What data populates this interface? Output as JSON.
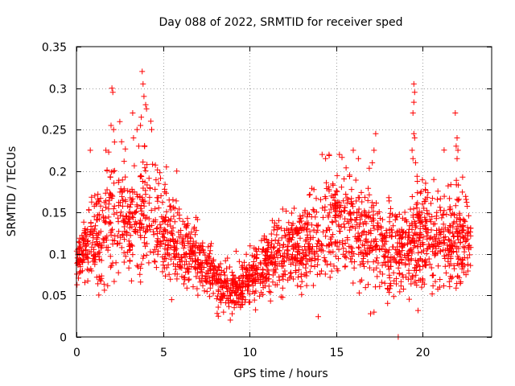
{
  "chart_data": {
    "type": "scatter",
    "title": "Day 088 of 2022, SRMTID for receiver sped",
    "xlabel": "GPS time / hours",
    "ylabel": "SRMTID / TECUs",
    "xlim": [
      0,
      24
    ],
    "ylim": [
      0,
      0.35
    ],
    "xticks": [
      0,
      5,
      10,
      15,
      20
    ],
    "xtick_labels": [
      "0",
      "5",
      "10",
      "15",
      "20"
    ],
    "yticks": [
      0,
      0.05,
      0.1,
      0.15,
      0.2,
      0.25,
      0.3,
      0.35
    ],
    "ytick_labels": [
      "0",
      "0.05",
      "0.1",
      "0.15",
      "0.2",
      "0.25",
      "0.3",
      "0.35"
    ],
    "grid": true,
    "marker": "+",
    "color": "#ff0000",
    "series": [
      {
        "name": "SRMTID",
        "profile_x": [
          0,
          0.5,
          1,
          1.5,
          2,
          2.5,
          3,
          3.5,
          4,
          4.5,
          5,
          5.5,
          6,
          6.5,
          7,
          7.5,
          8,
          8.5,
          9,
          9.5,
          10,
          10.5,
          11,
          11.5,
          12,
          12.5,
          13,
          13.5,
          14,
          14.5,
          15,
          15.5,
          16,
          16.5,
          17,
          17.5,
          18,
          18.5,
          19,
          19.5,
          20,
          20.5,
          21,
          21.5,
          22,
          22.5,
          22.8
        ],
        "profile_y": [
          0.09,
          0.11,
          0.115,
          0.12,
          0.14,
          0.14,
          0.13,
          0.14,
          0.16,
          0.14,
          0.13,
          0.12,
          0.11,
          0.1,
          0.095,
          0.085,
          0.07,
          0.06,
          0.055,
          0.06,
          0.07,
          0.08,
          0.09,
          0.095,
          0.1,
          0.105,
          0.11,
          0.115,
          0.12,
          0.13,
          0.14,
          0.14,
          0.13,
          0.125,
          0.12,
          0.115,
          0.11,
          0.1,
          0.1,
          0.11,
          0.12,
          0.125,
          0.12,
          0.115,
          0.12,
          0.12,
          0.11
        ],
        "profile_spread": [
          0.015,
          0.02,
          0.03,
          0.035,
          0.04,
          0.04,
          0.04,
          0.04,
          0.04,
          0.035,
          0.03,
          0.028,
          0.025,
          0.022,
          0.02,
          0.018,
          0.015,
          0.015,
          0.015,
          0.015,
          0.018,
          0.02,
          0.022,
          0.024,
          0.025,
          0.025,
          0.027,
          0.03,
          0.035,
          0.035,
          0.035,
          0.035,
          0.033,
          0.03,
          0.03,
          0.03,
          0.03,
          0.03,
          0.03,
          0.035,
          0.035,
          0.035,
          0.035,
          0.035,
          0.035,
          0.035,
          0.025
        ],
        "count": 2200,
        "highlights": [
          {
            "x": 2.05,
            "y": 0.3
          },
          {
            "x": 2.1,
            "y": 0.295
          },
          {
            "x": 2.0,
            "y": 0.255
          },
          {
            "x": 2.15,
            "y": 0.25
          },
          {
            "x": 2.2,
            "y": 0.235
          },
          {
            "x": 1.7,
            "y": 0.225
          },
          {
            "x": 0.8,
            "y": 0.225
          },
          {
            "x": 3.25,
            "y": 0.27
          },
          {
            "x": 3.3,
            "y": 0.24
          },
          {
            "x": 3.8,
            "y": 0.32
          },
          {
            "x": 3.85,
            "y": 0.305
          },
          {
            "x": 3.9,
            "y": 0.29
          },
          {
            "x": 4.0,
            "y": 0.28
          },
          {
            "x": 4.05,
            "y": 0.275
          },
          {
            "x": 3.75,
            "y": 0.265
          },
          {
            "x": 3.7,
            "y": 0.255
          },
          {
            "x": 4.3,
            "y": 0.26
          },
          {
            "x": 4.35,
            "y": 0.25
          },
          {
            "x": 3.5,
            "y": 0.25
          },
          {
            "x": 3.6,
            "y": 0.23
          },
          {
            "x": 5.2,
            "y": 0.205
          },
          {
            "x": 5.8,
            "y": 0.2
          },
          {
            "x": 14.2,
            "y": 0.22
          },
          {
            "x": 14.4,
            "y": 0.215
          },
          {
            "x": 14.6,
            "y": 0.22
          },
          {
            "x": 15.2,
            "y": 0.22
          },
          {
            "x": 16.0,
            "y": 0.225
          },
          {
            "x": 16.3,
            "y": 0.215
          },
          {
            "x": 17.3,
            "y": 0.245
          },
          {
            "x": 17.2,
            "y": 0.225
          },
          {
            "x": 17.1,
            "y": 0.21
          },
          {
            "x": 19.5,
            "y": 0.305
          },
          {
            "x": 19.55,
            "y": 0.295
          },
          {
            "x": 19.5,
            "y": 0.283
          },
          {
            "x": 19.45,
            "y": 0.27
          },
          {
            "x": 19.5,
            "y": 0.245
          },
          {
            "x": 19.55,
            "y": 0.24
          },
          {
            "x": 19.4,
            "y": 0.225
          },
          {
            "x": 19.45,
            "y": 0.215
          },
          {
            "x": 19.6,
            "y": 0.21
          },
          {
            "x": 21.9,
            "y": 0.27
          },
          {
            "x": 22.0,
            "y": 0.24
          },
          {
            "x": 21.95,
            "y": 0.23
          },
          {
            "x": 22.05,
            "y": 0.225
          },
          {
            "x": 22.0,
            "y": 0.215
          },
          {
            "x": 8.2,
            "y": 0.025
          },
          {
            "x": 9.0,
            "y": 0.028
          },
          {
            "x": 8.5,
            "y": 0.03
          },
          {
            "x": 17.0,
            "y": 0.028
          },
          {
            "x": 17.2,
            "y": 0.03
          },
          {
            "x": 18.6,
            "y": 0.0
          },
          {
            "x": 5.5,
            "y": 0.045
          },
          {
            "x": 20.0,
            "y": 0.07
          },
          {
            "x": 21.0,
            "y": 0.06
          }
        ]
      }
    ]
  }
}
